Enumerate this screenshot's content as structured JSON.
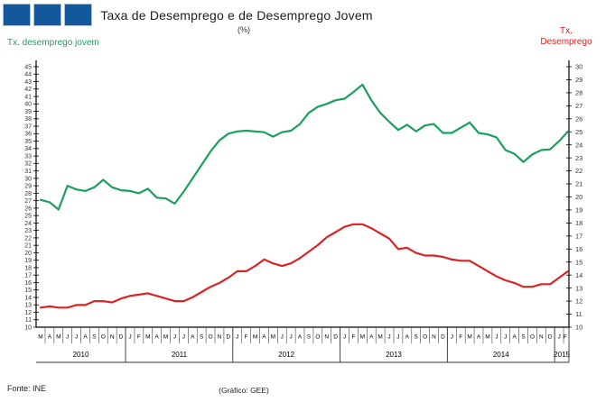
{
  "header": {
    "title": "Taxa de Desemprego e de Desemprego Jovem",
    "subtitle": "(%)",
    "logo_color": "#14589c"
  },
  "axis_labels": {
    "left": "Tx. desemprego jovem",
    "right_line1": "Tx.",
    "right_line2": "Desemprego"
  },
  "footer": {
    "source": "Fonte: INE",
    "credit": "(Gráfico: GEE)"
  },
  "colors": {
    "youth_line": "#1ba05c",
    "unemployment_line": "#d92424",
    "logo_blue": "#14589c",
    "axis_text": "#333333"
  },
  "chart_data": {
    "type": "line",
    "title": "Taxa de Desemprego e de Desemprego Jovem",
    "subtitle": "(%)",
    "x_months": [
      "M",
      "A",
      "M",
      "J",
      "J",
      "A",
      "S",
      "O",
      "N",
      "D",
      "J",
      "F",
      "M",
      "A",
      "M",
      "J",
      "J",
      "A",
      "S",
      "O",
      "N",
      "D",
      "J",
      "F",
      "M",
      "A",
      "M",
      "J",
      "J",
      "A",
      "S",
      "O",
      "N",
      "D",
      "J",
      "F",
      "M",
      "A",
      "M",
      "J",
      "J",
      "A",
      "S",
      "O",
      "N",
      "D",
      "J",
      "F",
      "M",
      "A",
      "M",
      "J",
      "J",
      "A",
      "S",
      "O",
      "N",
      "D",
      "J",
      "F"
    ],
    "years": [
      {
        "label": "2010",
        "count": 10
      },
      {
        "label": "2011",
        "count": 12
      },
      {
        "label": "2012",
        "count": 12
      },
      {
        "label": "2013",
        "count": 12
      },
      {
        "label": "2014",
        "count": 12
      },
      {
        "label": "2015",
        "count": 2
      }
    ],
    "left_ylim": [
      10,
      45
    ],
    "right_ylim": [
      10,
      30
    ],
    "grid": false,
    "series": [
      {
        "name": "Tx. desemprego jovem",
        "axis": "left",
        "color": "#1ba05c",
        "values": [
          27.1,
          26.8,
          25.8,
          29.0,
          28.5,
          28.3,
          28.8,
          29.8,
          28.8,
          28.4,
          28.3,
          28.0,
          28.6,
          27.4,
          27.3,
          26.6,
          28.2,
          30.0,
          31.8,
          33.6,
          35.1,
          36.0,
          36.3,
          36.4,
          36.3,
          36.2,
          35.6,
          36.2,
          36.4,
          37.3,
          38.8,
          39.6,
          40.0,
          40.5,
          40.7,
          41.6,
          42.6,
          40.5,
          38.8,
          37.6,
          36.5,
          37.2,
          36.3,
          37.1,
          37.3,
          36.1,
          36.1,
          36.8,
          37.5,
          36.1,
          35.9,
          35.5,
          33.8,
          33.3,
          32.2,
          33.2,
          33.8,
          33.9,
          35.0,
          36.3
        ]
      },
      {
        "name": "Tx. Desemprego",
        "axis": "right",
        "color": "#d92424",
        "values": [
          11.5,
          11.6,
          11.5,
          11.5,
          11.7,
          11.7,
          12.0,
          12.0,
          11.9,
          12.2,
          12.4,
          12.5,
          12.6,
          12.4,
          12.2,
          12.0,
          12.0,
          12.3,
          12.7,
          13.1,
          13.4,
          13.8,
          14.3,
          14.3,
          14.7,
          15.2,
          14.9,
          14.7,
          14.9,
          15.3,
          15.8,
          16.3,
          16.9,
          17.3,
          17.7,
          17.9,
          17.9,
          17.6,
          17.2,
          16.8,
          16.0,
          16.1,
          15.7,
          15.5,
          15.5,
          15.4,
          15.2,
          15.1,
          15.1,
          14.7,
          14.3,
          13.9,
          13.6,
          13.4,
          13.1,
          13.1,
          13.3,
          13.3,
          13.8,
          14.3
        ]
      }
    ]
  }
}
